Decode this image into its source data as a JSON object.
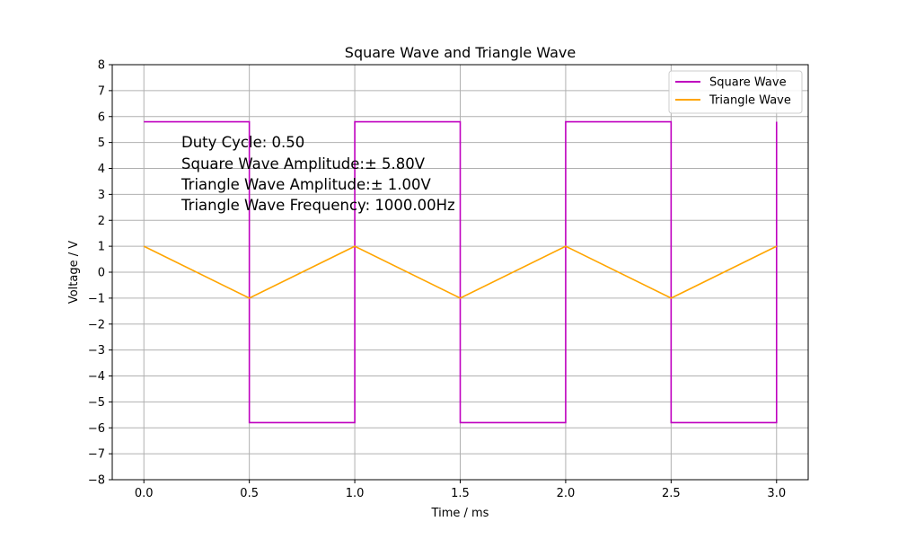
{
  "chart_data": {
    "type": "line",
    "title": "Square Wave and Triangle Wave",
    "xlabel": "Time / ms",
    "ylabel": "Voltage / V",
    "xlim": [
      -0.15,
      3.15
    ],
    "ylim": [
      -8,
      8
    ],
    "xticks": [
      "0.0",
      "0.5",
      "1.0",
      "1.5",
      "2.0",
      "2.5",
      "3.0"
    ],
    "xtick_values": [
      0.0,
      0.5,
      1.0,
      1.5,
      2.0,
      2.5,
      3.0
    ],
    "yticks": [
      "−8",
      "−7",
      "−6",
      "−5",
      "−4",
      "−3",
      "−2",
      "−1",
      "0",
      "1",
      "2",
      "3",
      "4",
      "5",
      "6",
      "7",
      "8"
    ],
    "ytick_values": [
      -8,
      -7,
      -6,
      -5,
      -4,
      -3,
      -2,
      -1,
      0,
      1,
      2,
      3,
      4,
      5,
      6,
      7,
      8
    ],
    "grid": true,
    "legend_position": "top-right",
    "series": [
      {
        "name": "Square Wave",
        "color": "#bf00bf",
        "x": [
          0.0,
          0.5,
          0.5,
          1.0,
          1.0,
          1.5,
          1.5,
          2.0,
          2.0,
          2.5,
          2.5,
          3.0,
          3.0
        ],
        "y": [
          5.8,
          5.8,
          -5.8,
          -5.8,
          5.8,
          5.8,
          -5.8,
          -5.8,
          5.8,
          5.8,
          -5.8,
          -5.8,
          5.8
        ]
      },
      {
        "name": "Triangle Wave",
        "color": "#ffa500",
        "x": [
          0.0,
          0.5,
          1.0,
          1.5,
          2.0,
          2.5,
          3.0
        ],
        "y": [
          1.0,
          -1.0,
          1.0,
          -1.0,
          1.0,
          -1.0,
          1.0
        ]
      }
    ],
    "annotations": [
      "Duty Cycle: 0.50",
      "Square Wave Amplitude:± 5.80V",
      "Triangle Wave Amplitude:± 1.00V",
      "Triangle Wave Frequency: 1000.00Hz"
    ]
  }
}
